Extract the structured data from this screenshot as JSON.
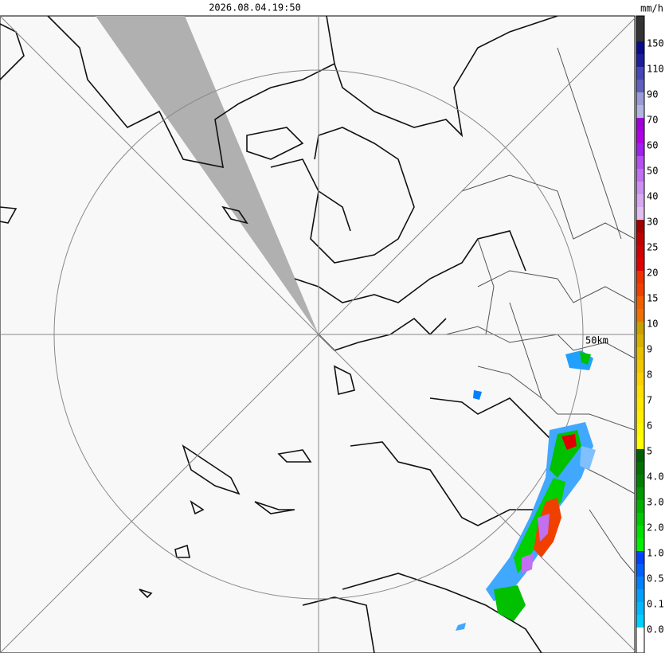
{
  "header": {
    "timestamp": "2026.08.04.19:50"
  },
  "legend": {
    "unit": "mm/h",
    "labels": [
      "150",
      "110",
      "90",
      "70",
      "60",
      "50",
      "40",
      "30",
      "25",
      "20",
      "15",
      "10",
      "9",
      "8",
      "7",
      "6",
      "5",
      "4.0",
      "3.0",
      "2.0",
      "1.0",
      "0.5",
      "0.1",
      "0.0"
    ],
    "colors": [
      "#333333",
      "#333333",
      "#0a0a8c",
      "#1e1e9a",
      "#4646b4",
      "#6060c0",
      "#9a9ad8",
      "#b4b4e0",
      "#a000d8",
      "#b000e8",
      "#a020f0",
      "#b450f0",
      "#c070f0",
      "#cc90f0",
      "#d8a8f0",
      "#e0c0f0",
      "#a00000",
      "#c00000",
      "#d00000",
      "#e00000",
      "#f03000",
      "#f04000",
      "#f06000",
      "#f07000",
      "#c8a000",
      "#d8b000",
      "#e8c000",
      "#f0c800",
      "#ffd000",
      "#ffe000",
      "#ffe800",
      "#fff000",
      "#fff800",
      "#ffff00",
      "#006000",
      "#007000",
      "#008000",
      "#009800",
      "#00b000",
      "#00c800",
      "#00e000",
      "#00f000",
      "#0040ff",
      "#0060ff",
      "#0080ff",
      "#00a0ff",
      "#00b8ff",
      "#00d0ff",
      "#ffffff",
      "#ffffff"
    ]
  },
  "map": {
    "range_label": "50km"
  }
}
